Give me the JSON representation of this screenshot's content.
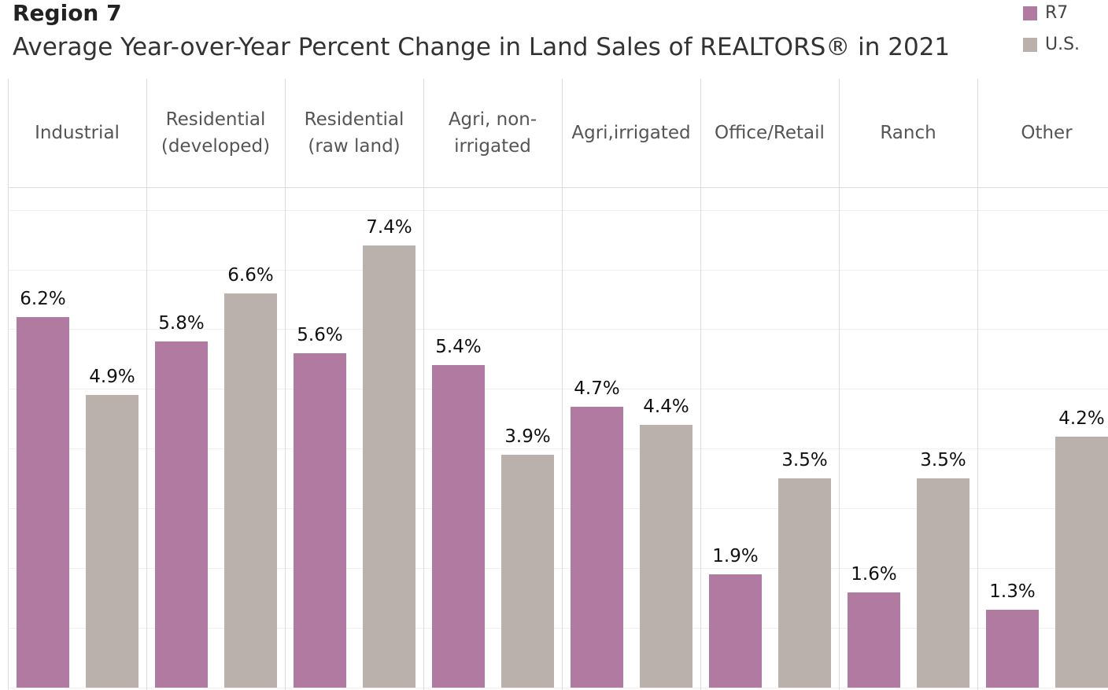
{
  "chart_data": {
    "type": "bar",
    "title": "Region 7",
    "subtitle": "Average Year-over-Year Percent Change in Land Sales of REALTORS® in 2021",
    "categories": [
      "Industrial",
      "Residential (developed)",
      "Residential (raw land)",
      "Agri, non-irrigated",
      "Agri,irrigated",
      "Office/Retail",
      "Ranch",
      "Other"
    ],
    "series": [
      {
        "name": "R7",
        "color": "#b07aa1",
        "values": [
          6.2,
          5.8,
          5.6,
          5.4,
          4.7,
          1.9,
          1.6,
          1.3
        ],
        "value_labels": [
          "6.2%",
          "5.8%",
          "5.6%",
          "5.4%",
          "4.7%",
          "1.9%",
          "1.6%",
          "1.3%"
        ]
      },
      {
        "name": "U.S.",
        "color": "#bab0ac",
        "values": [
          4.9,
          6.6,
          7.4,
          3.9,
          4.4,
          3.5,
          3.5,
          4.2
        ],
        "value_labels": [
          "4.9%",
          "6.6%",
          "7.4%",
          "3.9%",
          "4.4%",
          "3.5%",
          "3.5%",
          "4.2%"
        ]
      }
    ],
    "ylim": [
      0,
      8.35
    ],
    "yticks": [
      0,
      1,
      2,
      3,
      4,
      5,
      6,
      7,
      8
    ],
    "grid": true,
    "legend": "top-right"
  }
}
